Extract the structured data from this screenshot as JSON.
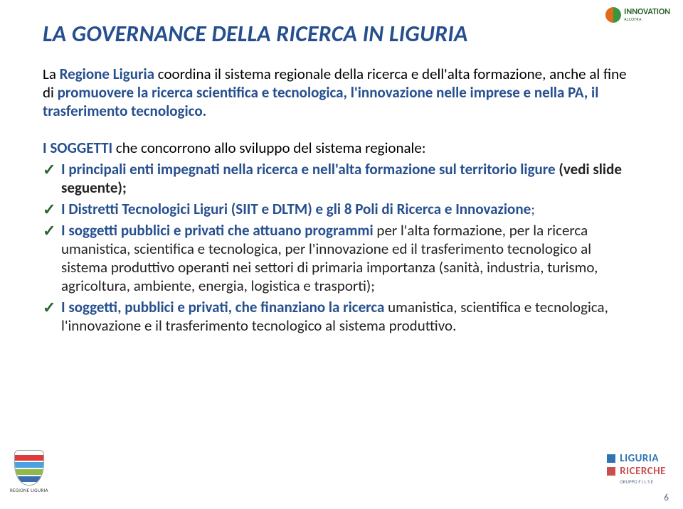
{
  "colors": {
    "title": "#264f8f",
    "textDark": "#222222",
    "accentBlue": "#264f8f",
    "checkGreen": "#2b6330",
    "logoTR_left": "#e26a1b",
    "logoTR_right": "#3a9740",
    "logoTR_text": "#2b6330",
    "shield_band1": "#e03a3a",
    "shield_band2": "#4aa3e0",
    "shield_band3": "#8fb94a",
    "shield_band4": "#3a6db0",
    "liguria_sq1": "#2e74b5",
    "liguria_sq2": "#c94f4f",
    "liguria_word1": "#2e74b5",
    "liguria_word2": "#c94f4f",
    "pagenum": "#5a6a8a"
  },
  "logos": {
    "topRight": {
      "text": "INNOVATION",
      "sub": "ALCOTRA"
    },
    "bottomLeft": {
      "caption": "REGIONE LIGURIA"
    },
    "bottomRight": {
      "word1": "LIGURIA",
      "word2": "RICERCHE",
      "sub": "GRUPPO F I L S E"
    }
  },
  "pageNumber": "6",
  "title": "LA GOVERNANCE DELLA RICERCA IN LIGURIA",
  "intro": {
    "p1a": "La ",
    "p1b": "Regione Liguria ",
    "p1c": "coordina il sistema regionale della ricerca e dell'alta formazione, anche al fine di ",
    "p1d": "promuovere la ricerca scientifica e tecnologica, l'innovazione nelle imprese e nella PA, il trasferimento tecnologico."
  },
  "bodyLead": {
    "a": "I SOGGETTI ",
    "b": "che concorrono allo sviluppo del sistema regionale:"
  },
  "bullets": [
    {
      "runs": [
        {
          "t": "I principali enti impegnati nella ricerca e nell'alta formazione sul territorio ligure ",
          "color": "accentBlue",
          "bold": true
        },
        {
          "t": "(vedi slide seguente);",
          "color": "textDark",
          "bold": true
        }
      ]
    },
    {
      "runs": [
        {
          "t": "I Distretti Tecnologici Liguri (SIIT e DLTM) e gli 8 Poli di Ricerca e Innovazione",
          "color": "accentBlue",
          "bold": true
        },
        {
          "t": ";",
          "color": "accentBlue",
          "bold": false
        }
      ]
    },
    {
      "runs": [
        {
          "t": "I soggetti pubblici e privati che attuano programmi ",
          "color": "accentBlue",
          "bold": true
        },
        {
          "t": "per l'alta formazione, per la ricerca umanistica, scientifica e tecnologica, per l'innovazione ed il trasferimento tecnologico al sistema produttivo operanti nei settori di primaria importanza (sanità, industria, turismo, agricoltura, ambiente, energia, logistica e trasporti);",
          "color": "textDark",
          "bold": false
        }
      ]
    },
    {
      "runs": [
        {
          "t": "I soggetti, pubblici e privati, che finanziano la ricerca ",
          "color": "accentBlue",
          "bold": true
        },
        {
          "t": "umanistica, scientifica e tecnologica, l'innovazione e il trasferimento tecnologico al sistema produttivo.",
          "color": "textDark",
          "bold": false
        }
      ]
    }
  ]
}
